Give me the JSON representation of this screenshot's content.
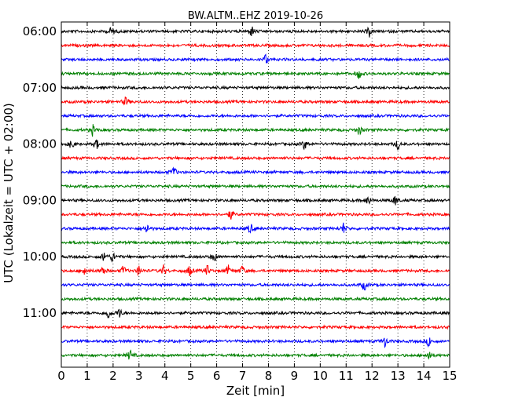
{
  "chart_data": {
    "type": "line",
    "title": "BW.ALTM..EHZ 2019-10-26",
    "xlabel": "Zeit  [min]",
    "ylabel": "UTC (Lokalzeit = UTC + 02:00)",
    "xlim": [
      0,
      15
    ],
    "x_ticks": [
      "0",
      "1",
      "2",
      "3",
      "4",
      "5",
      "6",
      "7",
      "8",
      "9",
      "10",
      "11",
      "12",
      "13",
      "14",
      "15"
    ],
    "y_ticks": [
      "06:00",
      "07:00",
      "08:00",
      "09:00",
      "10:00",
      "11:00"
    ],
    "grid": "vertical dotted",
    "trace_colors": [
      "#000000",
      "#ff0000",
      "#0000ff",
      "#008000"
    ],
    "traces": [
      {
        "start": "06:00",
        "events": [
          1.95,
          7.35,
          11.9
        ]
      },
      {
        "start": "06:15",
        "events": []
      },
      {
        "start": "06:30",
        "events": [
          7.9
        ]
      },
      {
        "start": "06:45",
        "events": [
          11.5
        ]
      },
      {
        "start": "07:00",
        "events": []
      },
      {
        "start": "07:15",
        "events": [
          2.5
        ]
      },
      {
        "start": "07:30",
        "events": []
      },
      {
        "start": "07:45",
        "events": [
          1.2,
          11.5
        ]
      },
      {
        "start": "08:00",
        "events": [
          0.4,
          1.35,
          9.4,
          13.0
        ]
      },
      {
        "start": "08:15",
        "events": []
      },
      {
        "start": "08:30",
        "events": [
          4.35
        ]
      },
      {
        "start": "08:45",
        "events": []
      },
      {
        "start": "09:00",
        "events": [
          11.85,
          12.9
        ]
      },
      {
        "start": "09:15",
        "events": [
          6.55
        ]
      },
      {
        "start": "09:30",
        "events": [
          3.3,
          7.3,
          10.9
        ]
      },
      {
        "start": "09:45",
        "events": []
      },
      {
        "start": "10:00",
        "events": [
          1.65,
          2.0,
          5.9
        ]
      },
      {
        "start": "10:15",
        "events": [
          0.9,
          1.6,
          2.4,
          3.0,
          3.95,
          4.95,
          5.65,
          6.45,
          7.0
        ]
      },
      {
        "start": "10:30",
        "events": [
          11.7
        ]
      },
      {
        "start": "10:45",
        "events": []
      },
      {
        "start": "11:00",
        "events": [
          1.8,
          2.25
        ]
      },
      {
        "start": "11:15",
        "events": []
      },
      {
        "start": "11:30",
        "events": [
          12.5,
          14.2
        ]
      },
      {
        "start": "11:45",
        "events": [
          2.65,
          14.2
        ]
      }
    ]
  }
}
